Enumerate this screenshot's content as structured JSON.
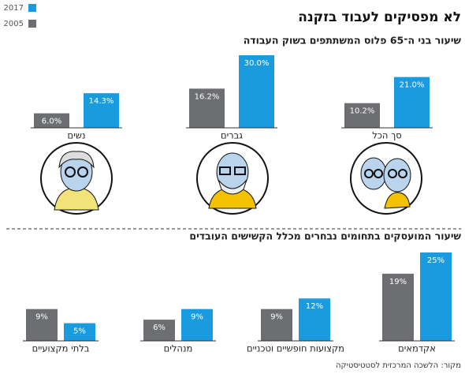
{
  "title": "לא מפסיקים לעבוד בזקנה",
  "source": "מקור: הלשכה המרכזית לסטטיסטיקה",
  "chart_data": [
    {
      "type": "bar",
      "subtitle": "שיעור בני ה־65 פלוס המשתתפים בשוק העבודה",
      "categories": [
        "סך הכל",
        "גברים",
        "נשים"
      ],
      "series": [
        {
          "name": "2017",
          "color": "#1a9be0",
          "values": [
            21.0,
            30.0,
            14.3
          ],
          "value_labels": [
            "21.0%",
            "30.0%",
            "14.3%"
          ]
        },
        {
          "name": "2005",
          "color": "#6d6e71",
          "values": [
            10.2,
            16.2,
            6.0
          ],
          "value_labels": [
            "10.2%",
            "16.2%",
            "6.0%"
          ]
        }
      ],
      "ylim": [
        0,
        30
      ]
    },
    {
      "type": "bar",
      "subtitle": "שיעור המועסקים בתחומים נבחרים מכלל הקשישים העובדים",
      "categories": [
        "אקדמאים",
        "מקצועות חופשיים וטכניים",
        "מנהלים",
        "בלתי מקצועיים"
      ],
      "series": [
        {
          "color": "#1a9be0",
          "values": [
            25,
            12,
            9,
            5
          ],
          "value_labels": [
            "25%",
            "12%",
            "9%",
            "5%"
          ]
        },
        {
          "color": "#6d6e71",
          "values": [
            19,
            9,
            6,
            9
          ],
          "value_labels": [
            "19%",
            "9%",
            "6%",
            "9%"
          ]
        }
      ],
      "ylim": [
        0,
        25
      ]
    }
  ]
}
